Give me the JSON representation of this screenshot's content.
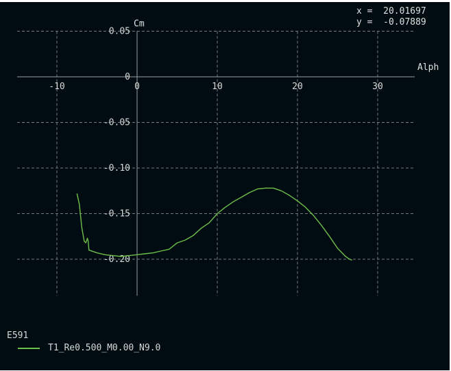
{
  "readout": {
    "x_label": "x =",
    "x_value": "20.01697",
    "y_label": "y =",
    "y_value": "-0.07889"
  },
  "legend": {
    "title": "E591",
    "entry": "T1_Re0.500_M0.00_N9.0",
    "color": "#6cc04a"
  },
  "chart_data": {
    "type": "line",
    "xlabel": "Alph",
    "ylabel": "Cm",
    "xlim": [
      -15,
      35
    ],
    "ylim": [
      -0.24,
      0.05
    ],
    "x_ticks": [
      -10,
      0,
      10,
      20,
      30
    ],
    "x_tick_labels": [
      "-10",
      "0",
      "10",
      "20",
      "30"
    ],
    "y_ticks": [
      0.05,
      0,
      -0.05,
      -0.1,
      -0.15,
      -0.2
    ],
    "y_tick_labels": [
      "0.05",
      "0",
      "-0.05",
      "-0.10",
      "-0.15",
      "-0.20"
    ],
    "grid": true,
    "series": [
      {
        "name": "T1_Re0.500_M0.00_N9.0",
        "color": "#6cc04a",
        "x": [
          -7.5,
          -7.2,
          -6.9,
          -6.6,
          -6.4,
          -6.3,
          -6.2,
          -6.1,
          -6.0,
          -5.0,
          -4.0,
          -3.0,
          -2.0,
          -1.0,
          0.0,
          1.0,
          2.0,
          3.0,
          4.0,
          5.0,
          6.0,
          7.0,
          8.0,
          9.0,
          10.0,
          11.0,
          12.0,
          13.0,
          14.0,
          15.0,
          16.0,
          17.0,
          18.0,
          19.0,
          20.0,
          21.0,
          22.0,
          23.0,
          24.0,
          25.0,
          26.0,
          26.5,
          26.8
        ],
        "y": [
          -0.128,
          -0.14,
          -0.165,
          -0.18,
          -0.182,
          -0.18,
          -0.177,
          -0.18,
          -0.19,
          -0.193,
          -0.195,
          -0.196,
          -0.197,
          -0.196,
          -0.195,
          -0.194,
          -0.193,
          -0.191,
          -0.189,
          -0.182,
          -0.179,
          -0.174,
          -0.166,
          -0.16,
          -0.15,
          -0.143,
          -0.137,
          -0.132,
          -0.127,
          -0.123,
          -0.122,
          -0.122,
          -0.125,
          -0.13,
          -0.136,
          -0.143,
          -0.152,
          -0.163,
          -0.175,
          -0.188,
          -0.197,
          -0.2,
          -0.201
        ]
      }
    ]
  }
}
